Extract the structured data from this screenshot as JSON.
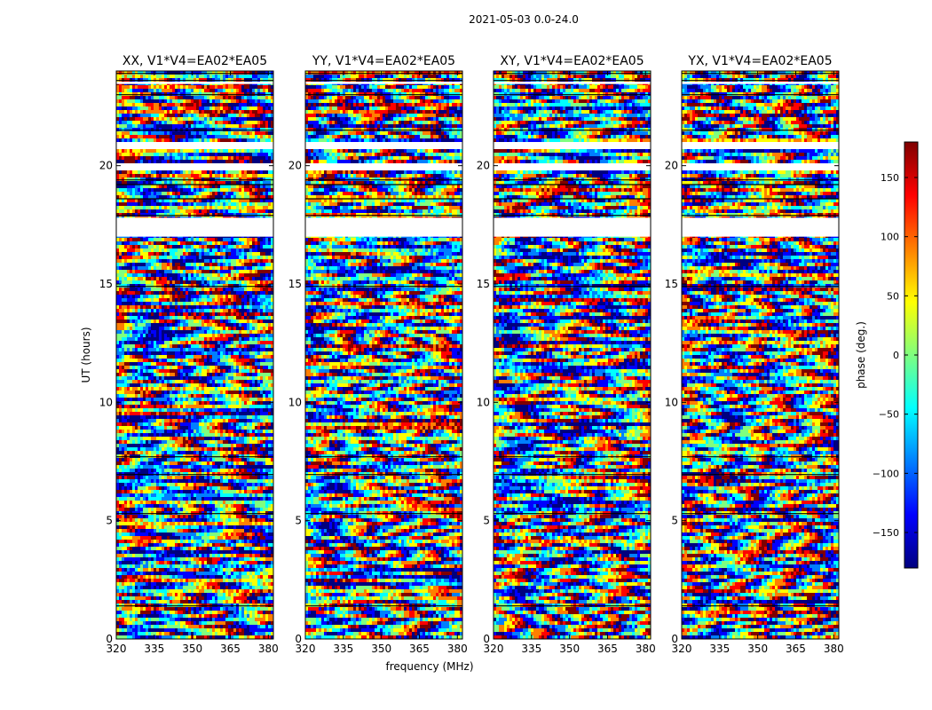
{
  "figure": {
    "suptitle": "2021-05-03 0.0-24.0",
    "xlabel": "frequency (MHz)",
    "ylabel": "UT (hours)",
    "colorbar_label": "phase (deg.)"
  },
  "chart_data": {
    "type": "heatmap",
    "panels": [
      {
        "title": "XX, V1*V4=EA02*EA05",
        "pol": "XX"
      },
      {
        "title": "YY, V1*V4=EA02*EA05",
        "pol": "YY"
      },
      {
        "title": "XY, V1*V4=EA02*EA05",
        "pol": "XY"
      },
      {
        "title": "YX, V1*V4=EA02*EA05",
        "pol": "YX"
      }
    ],
    "x_range_mhz": [
      320,
      382
    ],
    "x_ticks": [
      "320",
      "335",
      "350",
      "365",
      "380"
    ],
    "x_tick_values": [
      320,
      335,
      350,
      365,
      380
    ],
    "y_range_hours": [
      0,
      24
    ],
    "y_ticks": [
      "0",
      "5",
      "10",
      "15",
      "20"
    ],
    "y_tick_values": [
      0,
      5,
      10,
      15,
      20
    ],
    "colorbar": {
      "range_deg": [
        -180,
        180
      ],
      "ticks": [
        "150",
        "100",
        "50",
        "0",
        "−50",
        "−100",
        "−150"
      ],
      "tick_values": [
        150,
        100,
        50,
        0,
        -50,
        -100,
        -150
      ],
      "colormap": "jet",
      "colors": [
        "#00007f",
        "#0000ff",
        "#007fff",
        "#00ffff",
        "#7fff7f",
        "#ffff00",
        "#ff7f00",
        "#ff0000",
        "#7f0000"
      ]
    },
    "data_gaps_hours": [
      [
        17.0,
        17.8
      ],
      [
        19.8,
        20.1
      ],
      [
        20.7,
        21.0
      ],
      [
        23.45,
        23.55
      ]
    ],
    "scan_boundaries_hours": [
      1.4,
      5.3,
      6.95,
      7.7,
      14.9,
      17.9,
      18.6,
      19.2,
      19.4,
      21.5,
      23.0,
      23.6,
      23.9
    ]
  }
}
